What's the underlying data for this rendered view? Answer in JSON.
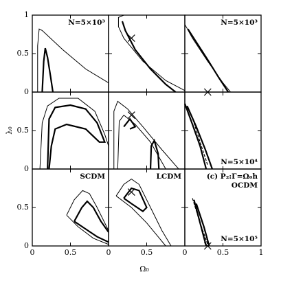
{
  "chart_data": {
    "type": "contour",
    "xlabel": "Ω₀",
    "ylabel": "λ₀",
    "xlim": [
      0,
      1
    ],
    "ylim": [
      0,
      1
    ],
    "xticks": [
      0,
      0.5,
      1
    ],
    "yticks": [
      0,
      0.5,
      1
    ],
    "panels": [
      {
        "labels": [
          {
            "text": "N=5×10³",
            "corner": "top"
          }
        ],
        "markers": [],
        "series": [
          {
            "style": "thin",
            "x": [
              0.07,
              0.07,
              0.09,
              0.13,
              0.4,
              0.7,
              1.0
            ],
            "y": [
              0,
              0.6,
              0.82,
              0.8,
              0.55,
              0.3,
              0.12
            ]
          },
          {
            "style": "thick",
            "x": [
              0.13,
              0.15,
              0.17,
              0.2,
              0.24,
              0.27
            ],
            "y": [
              0,
              0.4,
              0.57,
              0.45,
              0.2,
              0
            ]
          }
        ]
      },
      {
        "labels": [],
        "markers": [
          {
            "x": 0.3,
            "y": 0.7
          }
        ],
        "series": [
          {
            "style": "thin",
            "x": [
              0.2,
              0.13,
              0.13,
              0.2,
              0.45,
              0.75,
              1.0
            ],
            "y": [
              1.0,
              0.97,
              0.85,
              0.7,
              0.4,
              0.15,
              0.02
            ]
          },
          {
            "style": "thick",
            "x": [
              0.18,
              0.22,
              0.35,
              0.55,
              0.75,
              0.88
            ],
            "y": [
              0.92,
              0.8,
              0.55,
              0.3,
              0.1,
              0
            ]
          }
        ]
      },
      {
        "labels": [
          {
            "text": "N=5×10³",
            "corner": "top"
          }
        ],
        "markers": [
          {
            "x": 0.3,
            "y": 0
          }
        ],
        "series": [
          {
            "style": "thin",
            "x": [
              0.0,
              0.1,
              0.3,
              0.5,
              0.6
            ],
            "y": [
              0.88,
              0.7,
              0.4,
              0.12,
              0
            ]
          },
          {
            "style": "thick",
            "x": [
              0.04,
              0.15,
              0.3,
              0.45,
              0.57
            ],
            "y": [
              0.82,
              0.65,
              0.42,
              0.18,
              0
            ]
          }
        ]
      },
      {
        "labels": [],
        "markers": [],
        "series": [
          {
            "style": "thin",
            "x": [
              0.1,
              0.13,
              0.2,
              0.35,
              0.6,
              0.82,
              0.95,
              1.0
            ],
            "y": [
              0,
              0.6,
              0.82,
              0.92,
              0.92,
              0.75,
              0.45,
              0.3
            ]
          },
          {
            "style": "thick",
            "x": [
              0.2,
              0.22,
              0.3,
              0.5,
              0.7,
              0.85,
              0.95,
              0.88,
              0.7,
              0.45,
              0.3,
              0.25,
              0.22
            ],
            "y": [
              0,
              0.65,
              0.8,
              0.83,
              0.78,
              0.6,
              0.35,
              0.35,
              0.52,
              0.58,
              0.52,
              0.3,
              0
            ]
          }
        ]
      },
      {
        "labels": [],
        "markers": [
          {
            "x": 0.3,
            "y": 0.7
          }
        ],
        "series": [
          {
            "style": "thin",
            "x": [
              0.07,
              0.07,
              0.12,
              0.25,
              0.45,
              0.7,
              0.92
            ],
            "y": [
              0,
              0.75,
              0.88,
              0.78,
              0.55,
              0.25,
              0
            ]
          },
          {
            "style": "thin",
            "x": [
              0.12,
              0.14,
              0.2,
              0.35,
              0.55,
              0.75
            ],
            "y": [
              0,
              0.62,
              0.7,
              0.58,
              0.35,
              0
            ]
          },
          {
            "style": "thick",
            "x": [
              0.55,
              0.56,
              0.6,
              0.65,
              0.66
            ],
            "y": [
              0,
              0.3,
              0.37,
              0.2,
              0
            ]
          },
          {
            "style": "thick",
            "x": [
              0.2,
              0.28,
              0.35,
              0.28
            ],
            "y": [
              0.55,
              0.65,
              0.55,
              0.52
            ]
          }
        ]
      },
      {
        "labels": [
          {
            "text": "N=5×10⁴",
            "corner": "bottom"
          }
        ],
        "markers": [],
        "series": [
          {
            "style": "thick",
            "x": [
              0.0,
              0.1,
              0.2,
              0.28
            ],
            "y": [
              0.85,
              0.58,
              0.3,
              0
            ]
          },
          {
            "style": "thick",
            "x": [
              0.03,
              0.15,
              0.27,
              0.36
            ],
            "y": [
              0.82,
              0.55,
              0.25,
              0
            ]
          },
          {
            "style": "dashed",
            "x": [
              0.12,
              0.2,
              0.3
            ],
            "y": [
              0.6,
              0.35,
              0.05
            ]
          }
        ]
      },
      {
        "labels": [
          {
            "text": "SCDM",
            "corner": "top"
          }
        ],
        "markers": [],
        "series": [
          {
            "style": "thin",
            "x": [
              0.45,
              0.55,
              0.66,
              0.75,
              0.85,
              1.0
            ],
            "y": [
              0.4,
              0.6,
              0.72,
              0.68,
              0.5,
              0.2
            ]
          },
          {
            "style": "thin",
            "x": [
              0.45,
              0.6,
              0.8,
              1.0
            ],
            "y": [
              0.4,
              0.25,
              0.1,
              0.02
            ]
          },
          {
            "style": "thick",
            "x": [
              0.55,
              0.65,
              0.72,
              0.8,
              0.9,
              1.0
            ],
            "y": [
              0.32,
              0.5,
              0.58,
              0.5,
              0.32,
              0.18
            ]
          },
          {
            "style": "thick",
            "x": [
              0.55,
              0.7,
              0.85,
              1.0
            ],
            "y": [
              0.32,
              0.22,
              0.12,
              0.05
            ]
          }
        ]
      },
      {
        "labels": [
          {
            "text": "LCDM",
            "corner": "top"
          }
        ],
        "markers": [
          {
            "x": 0.3,
            "y": 0.7
          }
        ],
        "series": [
          {
            "style": "thin",
            "x": [
              0.1,
              0.2,
              0.3,
              0.4,
              0.55,
              0.7,
              0.82
            ],
            "y": [
              0.65,
              0.8,
              0.87,
              0.8,
              0.5,
              0.2,
              0
            ]
          },
          {
            "style": "thin",
            "x": [
              0.1,
              0.3,
              0.5,
              0.65,
              0.75
            ],
            "y": [
              0.65,
              0.5,
              0.3,
              0.12,
              0
            ]
          },
          {
            "style": "thick",
            "x": [
              0.2,
              0.3,
              0.4,
              0.5,
              0.45,
              0.3,
              0.2
            ],
            "y": [
              0.62,
              0.75,
              0.72,
              0.5,
              0.45,
              0.55,
              0.62
            ]
          }
        ]
      },
      {
        "labels": [
          {
            "text": "(c) P₂:Γ=Ω₀h",
            "corner": "top"
          },
          {
            "text": "OCDM",
            "corner": "top"
          },
          {
            "text": "N=5×10⁵",
            "corner": "bottom"
          }
        ],
        "markers": [
          {
            "x": 0.3,
            "y": 0
          }
        ],
        "series": [
          {
            "style": "thick",
            "x": [
              0.12,
              0.2,
              0.28
            ],
            "y": [
              0.6,
              0.3,
              0
            ]
          },
          {
            "style": "thick",
            "x": [
              0.15,
              0.25,
              0.32
            ],
            "y": [
              0.55,
              0.25,
              0
            ]
          },
          {
            "style": "dashed",
            "x": [
              0.1,
              0.2,
              0.3
            ],
            "y": [
              0.62,
              0.3,
              0.02
            ]
          }
        ]
      }
    ]
  }
}
